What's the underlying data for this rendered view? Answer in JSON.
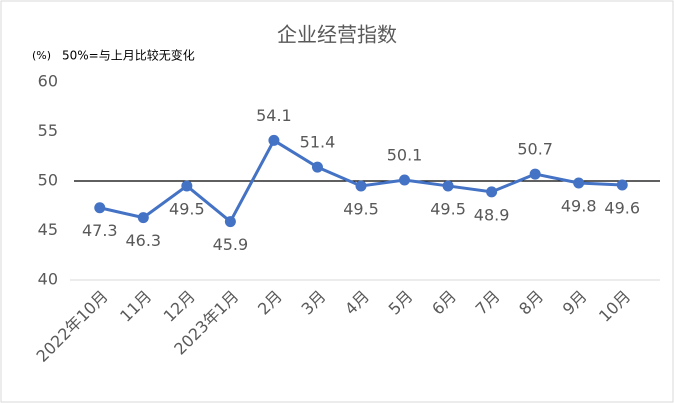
{
  "chart_data": {
    "type": "line",
    "title": "企业经营指数",
    "y_unit": "(%)",
    "annotation": "50%=与上月比较无变化",
    "categories": [
      "2022年10月",
      "11月",
      "12月",
      "2023年1月",
      "2月",
      "3月",
      "4月",
      "5月",
      "6月",
      "7月",
      "8月",
      "9月",
      "10月"
    ],
    "series": [
      {
        "name": "企业经营指数",
        "color": "#4472c4",
        "values": [
          47.3,
          46.3,
          49.5,
          45.9,
          54.1,
          51.4,
          49.5,
          50.1,
          49.5,
          48.9,
          50.7,
          49.8,
          49.6
        ]
      }
    ],
    "reference_line": 50,
    "ylim": [
      40,
      60
    ],
    "yticks": [
      40,
      45,
      50,
      55,
      60
    ],
    "grid": false
  }
}
